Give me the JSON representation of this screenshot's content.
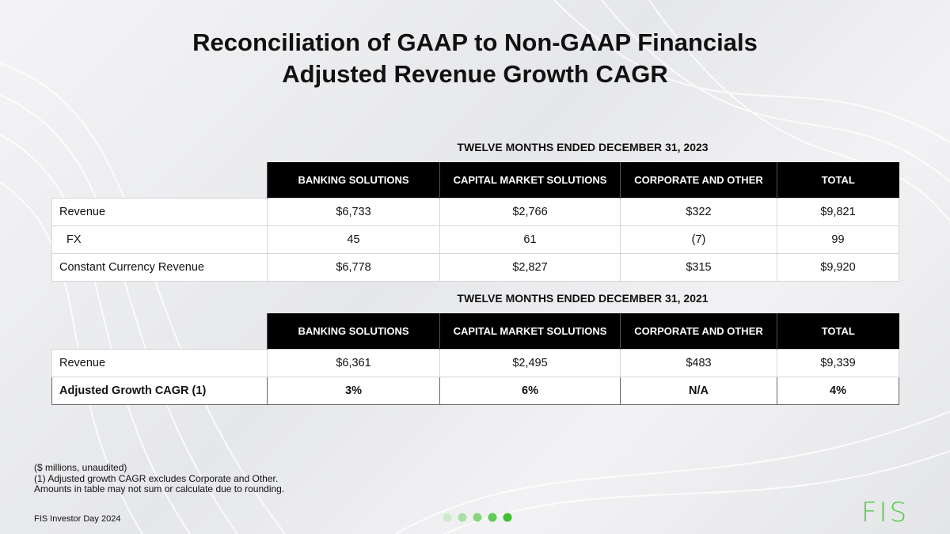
{
  "header": {
    "title_lines": [
      "Reconciliation of GAAP to Non-GAAP Financials",
      "Adjusted Revenue Growth CAGR"
    ]
  },
  "tables": [
    {
      "heading": "TWELVE MONTHS ENDED DECEMBER 31, 2023",
      "columns": [
        "BANKING SOLUTIONS",
        "CAPITAL MARKET SOLUTIONS",
        "CORPORATE AND OTHER",
        "TOTAL"
      ],
      "rows": [
        [
          "Revenue",
          "$6,733",
          "$2,766",
          "$322",
          "$9,821"
        ],
        [
          "FX",
          "45",
          "61",
          "(7)",
          "99"
        ],
        [
          "Constant Currency Revenue",
          "$6,778",
          "$2,827",
          "$315",
          "$9,920"
        ]
      ]
    },
    {
      "heading": "TWELVE MONTHS ENDED DECEMBER 31, 2021",
      "columns": [
        "BANKING SOLUTIONS",
        "CAPITAL MARKET SOLUTIONS",
        "CORPORATE AND OTHER",
        "TOTAL"
      ],
      "rows": [
        [
          "Revenue",
          "$6,361",
          "$2,495",
          "$483",
          "$9,339"
        ],
        [
          "Adjusted Growth CAGR (1)",
          "3%",
          "6%",
          "N/A",
          "4%"
        ]
      ]
    }
  ],
  "notes": [
    "($ millions, unaudited)",
    "(1)  Adjusted growth CAGR excludes Corporate and Other.",
    "Amounts in table may not sum or calculate due to rounding."
  ],
  "footer": "FIS Investor Day 2024",
  "logo": "FIS"
}
